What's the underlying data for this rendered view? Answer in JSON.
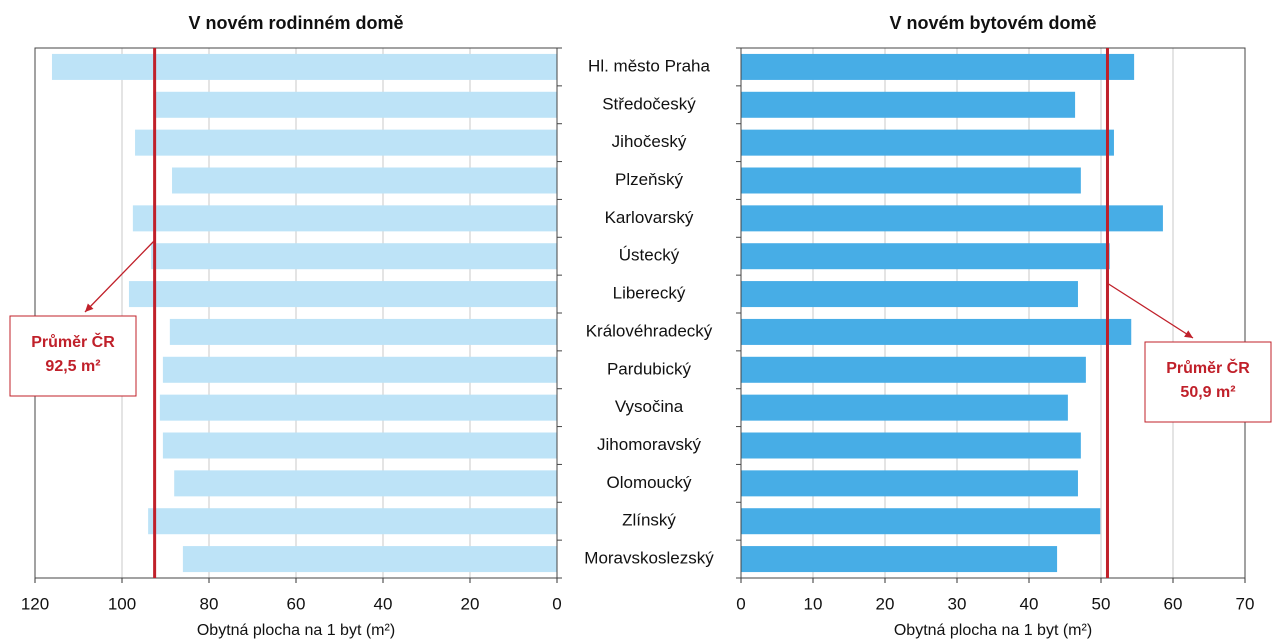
{
  "categories": [
    "Hl. město Praha",
    "Středočeský",
    "Jihočeský",
    "Plzeňský",
    "Karlovarský",
    "Ústecký",
    "Liberecký",
    "Královéhradecký",
    "Pardubický",
    "Vysočina",
    "Jihomoravský",
    "Olomoucký",
    "Zlínský",
    "Moravskoslezský"
  ],
  "chart_data": [
    {
      "type": "bar",
      "title": "V novém rodinném domě",
      "x_label": "Obytná plocha na 1 byt (m²)",
      "values": [
        116.1,
        92.4,
        97,
        88.5,
        97.5,
        93.3,
        98.4,
        89,
        90.6,
        91.3,
        90.6,
        88,
        94,
        86
      ],
      "color": "#bde3f7",
      "xlim": [
        120,
        0
      ],
      "xticks": [
        120,
        100,
        80,
        60,
        40,
        20,
        0
      ],
      "grid": true,
      "average": 92.5,
      "average_color": "#c0202a",
      "annotation": [
        "Průměr ČR",
        "92,5 m²"
      ]
    },
    {
      "type": "bar",
      "title": "V novém bytovém domě",
      "x_label": "Obytná plocha na 1 byt (m²)",
      "values": [
        54.6,
        46.4,
        51.8,
        47.2,
        58.6,
        51.2,
        46.8,
        54.2,
        47.9,
        45.4,
        47.2,
        46.8,
        49.9,
        43.9
      ],
      "color": "#47ade6",
      "xlim": [
        0,
        70
      ],
      "xticks": [
        0,
        10,
        20,
        30,
        40,
        50,
        60,
        70
      ],
      "grid": true,
      "average": 50.9,
      "average_color": "#c0202a",
      "annotation": [
        "Průměr ČR",
        "50,9 m²"
      ]
    }
  ]
}
